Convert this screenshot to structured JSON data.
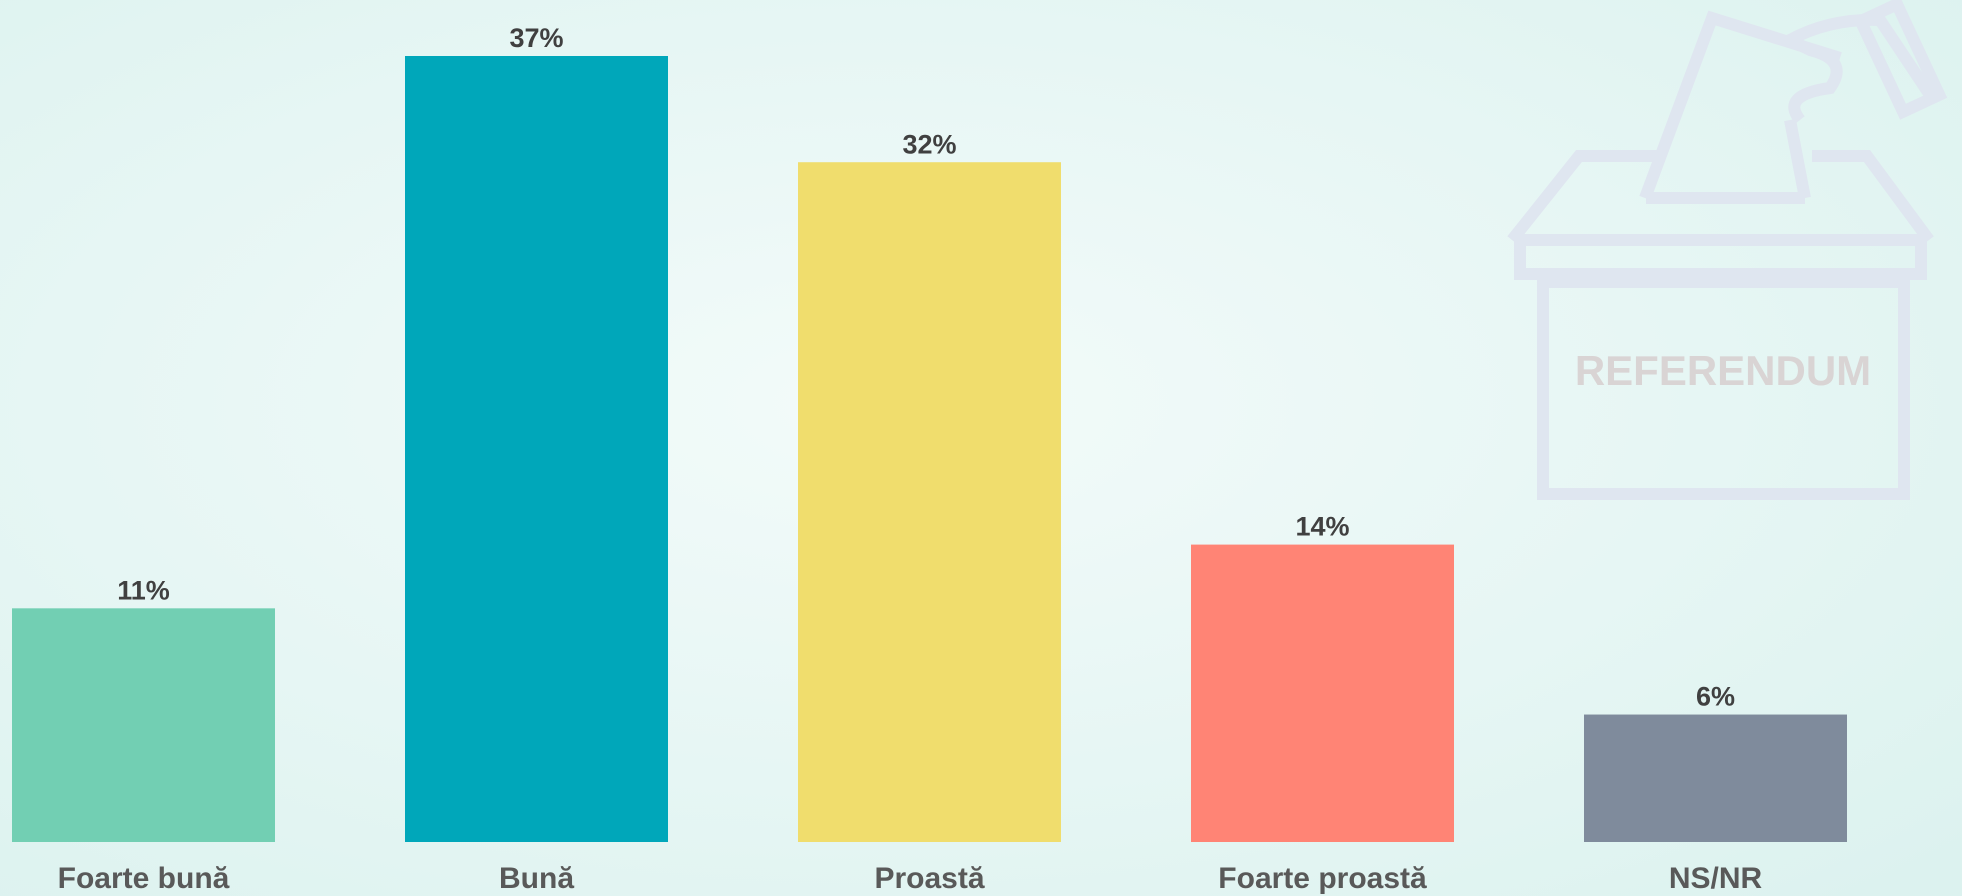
{
  "chart_data": {
    "type": "bar",
    "categories": [
      "Foarte bună",
      "Bună",
      "Proastă",
      "Foarte proastă",
      "NS/NR"
    ],
    "values": [
      11,
      37,
      32,
      14,
      6
    ],
    "value_labels": [
      "11%",
      "37%",
      "32%",
      "14%",
      "6%"
    ],
    "colors": [
      "#72cfb3",
      "#00a7ba",
      "#f0dd6d",
      "#ff8475",
      "#7f8b9c"
    ],
    "annotations": [
      "REFERENDUM"
    ]
  }
}
